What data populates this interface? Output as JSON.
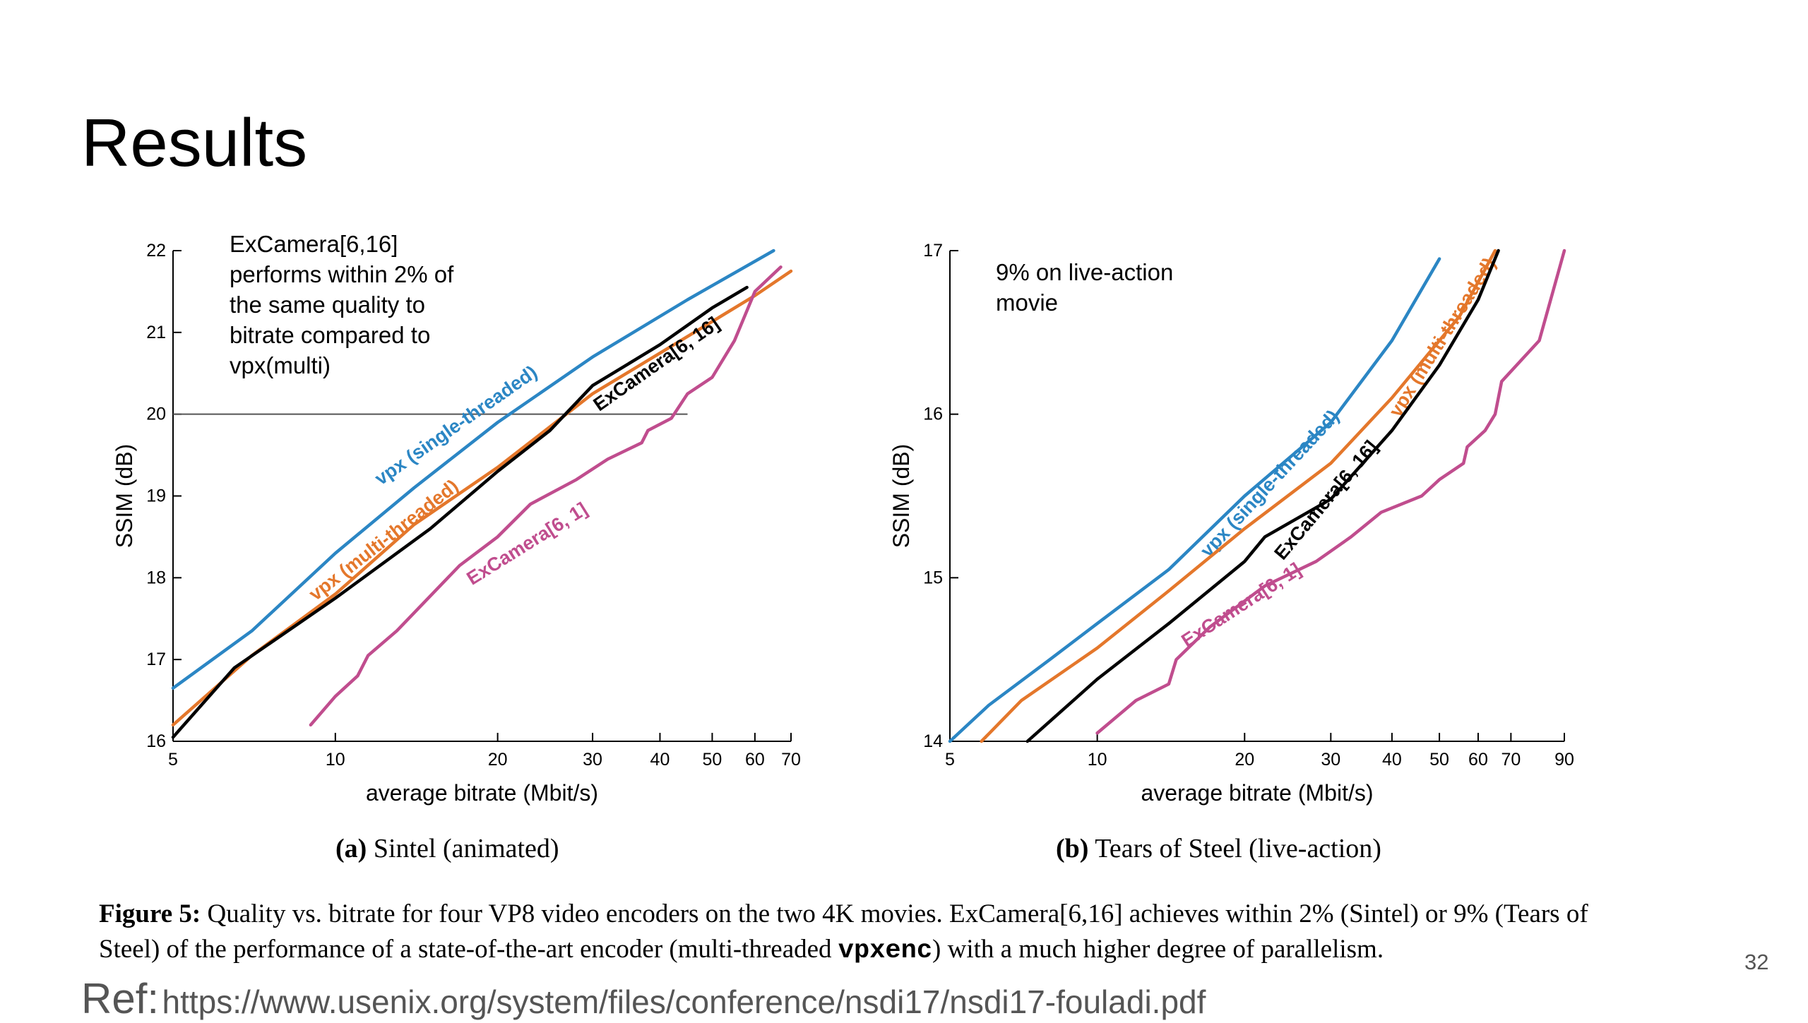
{
  "slide": {
    "title": "Results",
    "page_number": "32",
    "ref_prefix": "Ref:",
    "ref_url": "https://www.usenix.org/system/files/conference/nsdi17/nsdi17-fouladi.pdf"
  },
  "figure": {
    "caption_label": "Figure 5:",
    "caption_text_1": "Quality vs. bitrate for four VP8 video encoders on the two 4K movies. ExCamera[6,16] achieves within 2% (Sintel) or 9% (Tears of Steel) of the performance of a state-of-the-art encoder (multi-threaded",
    "caption_code": "vpxenc",
    "caption_text_2": ") with a much higher degree of parallelism."
  },
  "colors": {
    "single": "#2b86c4",
    "multi": "#e4772b",
    "excamera16": "#000000",
    "excamera1": "#c04d8e",
    "refline": "#555555"
  },
  "chart_data": [
    {
      "type": "line",
      "subcaption_label": "(a)",
      "subcaption_text": "Sintel (animated)",
      "xlabel": "average bitrate (Mbit/s)",
      "ylabel": "SSIM (dB)",
      "xscale": "log",
      "xlim": [
        5,
        70
      ],
      "ylim": [
        16,
        22
      ],
      "xticks": [
        5,
        10,
        20,
        30,
        40,
        50,
        60,
        70
      ],
      "yticks": [
        16,
        17,
        18,
        19,
        20,
        21,
        22
      ],
      "annotation": "ExCamera[6,16]\nperforms within 2% of\nthe same quality to\nbitrate compared to\nvpx(multi)",
      "reference_line": {
        "y": 20,
        "x_start": 5,
        "x_end": 45
      },
      "series": [
        {
          "name": "vpx (single-threaded)",
          "color": "single",
          "label_pos": {
            "x": 17,
            "y": 19.8
          },
          "label_rot": -35,
          "points": [
            [
              5,
              16.65
            ],
            [
              7,
              17.35
            ],
            [
              10,
              18.3
            ],
            [
              14,
              19.1
            ],
            [
              20,
              19.9
            ],
            [
              30,
              20.7
            ],
            [
              45,
              21.4
            ],
            [
              65,
              22.0
            ]
          ]
        },
        {
          "name": "vpx (multi-threaded)",
          "color": "multi",
          "label_pos": {
            "x": 12.5,
            "y": 18.4
          },
          "label_rot": -38,
          "points": [
            [
              5,
              16.2
            ],
            [
              7,
              17.05
            ],
            [
              10,
              17.8
            ],
            [
              14,
              18.65
            ],
            [
              20,
              19.35
            ],
            [
              30,
              20.25
            ],
            [
              45,
              20.95
            ],
            [
              60,
              21.45
            ],
            [
              70,
              21.75
            ]
          ]
        },
        {
          "name": "ExCamera[6, 16]",
          "color": "excamera16",
          "label_pos": {
            "x": 40,
            "y": 20.55
          },
          "label_rot": -35,
          "points": [
            [
              5,
              16.05
            ],
            [
              6.5,
              16.9
            ],
            [
              10,
              17.75
            ],
            [
              15,
              18.6
            ],
            [
              20,
              19.3
            ],
            [
              25,
              19.8
            ],
            [
              30,
              20.35
            ],
            [
              40,
              20.85
            ],
            [
              50,
              21.3
            ],
            [
              58,
              21.55
            ]
          ]
        },
        {
          "name": "ExCamera[6, 1]",
          "color": "excamera1",
          "label_pos": {
            "x": 23,
            "y": 18.35
          },
          "label_rot": -32,
          "points": [
            [
              9,
              16.2
            ],
            [
              10,
              16.55
            ],
            [
              11,
              16.8
            ],
            [
              11.5,
              17.05
            ],
            [
              13,
              17.35
            ],
            [
              17,
              18.15
            ],
            [
              20,
              18.5
            ],
            [
              23,
              18.9
            ],
            [
              28,
              19.2
            ],
            [
              32,
              19.45
            ],
            [
              37,
              19.65
            ],
            [
              38,
              19.8
            ],
            [
              42,
              19.95
            ],
            [
              45,
              20.25
            ],
            [
              50,
              20.45
            ],
            [
              55,
              20.9
            ],
            [
              60,
              21.5
            ],
            [
              67,
              21.8
            ]
          ]
        }
      ]
    },
    {
      "type": "line",
      "subcaption_label": "(b)",
      "subcaption_text": "Tears of Steel (live-action)",
      "xlabel": "average bitrate (Mbit/s)",
      "ylabel": "SSIM (dB)",
      "xscale": "log",
      "xlim": [
        5,
        90
      ],
      "ylim": [
        14,
        17
      ],
      "xticks": [
        5,
        10,
        20,
        30,
        40,
        50,
        60,
        70,
        90
      ],
      "yticks": [
        14,
        15,
        16,
        17
      ],
      "annotation": "9% on live-action\nmovie",
      "series": [
        {
          "name": "vpx (single-threaded)",
          "color": "single",
          "label_pos": {
            "x": 23,
            "y": 15.55
          },
          "label_rot": -47,
          "points": [
            [
              5,
              14.0
            ],
            [
              6,
              14.22
            ],
            [
              8,
              14.5
            ],
            [
              10,
              14.72
            ],
            [
              14,
              15.05
            ],
            [
              20,
              15.5
            ],
            [
              30,
              15.95
            ],
            [
              40,
              16.45
            ],
            [
              50,
              16.95
            ]
          ]
        },
        {
          "name": "vpx (multi-threaded)",
          "color": "multi",
          "label_pos": {
            "x": 52,
            "y": 16.45
          },
          "label_rot": -58,
          "points": [
            [
              5.8,
              14.0
            ],
            [
              7,
              14.25
            ],
            [
              10,
              14.57
            ],
            [
              14,
              14.92
            ],
            [
              20,
              15.3
            ],
            [
              30,
              15.7
            ],
            [
              40,
              16.1
            ],
            [
              55,
              16.6
            ],
            [
              65,
              17.0
            ]
          ]
        },
        {
          "name": "ExCamera[6, 16]",
          "color": "excamera16",
          "label_pos": {
            "x": 30,
            "y": 15.45
          },
          "label_rot": -50,
          "points": [
            [
              7.2,
              14.0
            ],
            [
              10,
              14.38
            ],
            [
              14,
              14.72
            ],
            [
              20,
              15.1
            ],
            [
              22,
              15.25
            ],
            [
              30,
              15.48
            ],
            [
              40,
              15.9
            ],
            [
              50,
              16.3
            ],
            [
              60,
              16.7
            ],
            [
              66,
              17.0
            ]
          ]
        },
        {
          "name": "ExCamera[6, 1]",
          "color": "excamera1",
          "label_pos": {
            "x": 20,
            "y": 14.8
          },
          "label_rot": -33,
          "points": [
            [
              10,
              14.05
            ],
            [
              12,
              14.25
            ],
            [
              14,
              14.35
            ],
            [
              14.5,
              14.5
            ],
            [
              17,
              14.7
            ],
            [
              22,
              14.95
            ],
            [
              28,
              15.1
            ],
            [
              33,
              15.25
            ],
            [
              38,
              15.4
            ],
            [
              46,
              15.5
            ],
            [
              50,
              15.6
            ],
            [
              56,
              15.7
            ],
            [
              57,
              15.8
            ],
            [
              62,
              15.9
            ],
            [
              65,
              16.0
            ],
            [
              67,
              16.2
            ],
            [
              80,
              16.45
            ],
            [
              90,
              17.0
            ]
          ]
        }
      ]
    }
  ]
}
